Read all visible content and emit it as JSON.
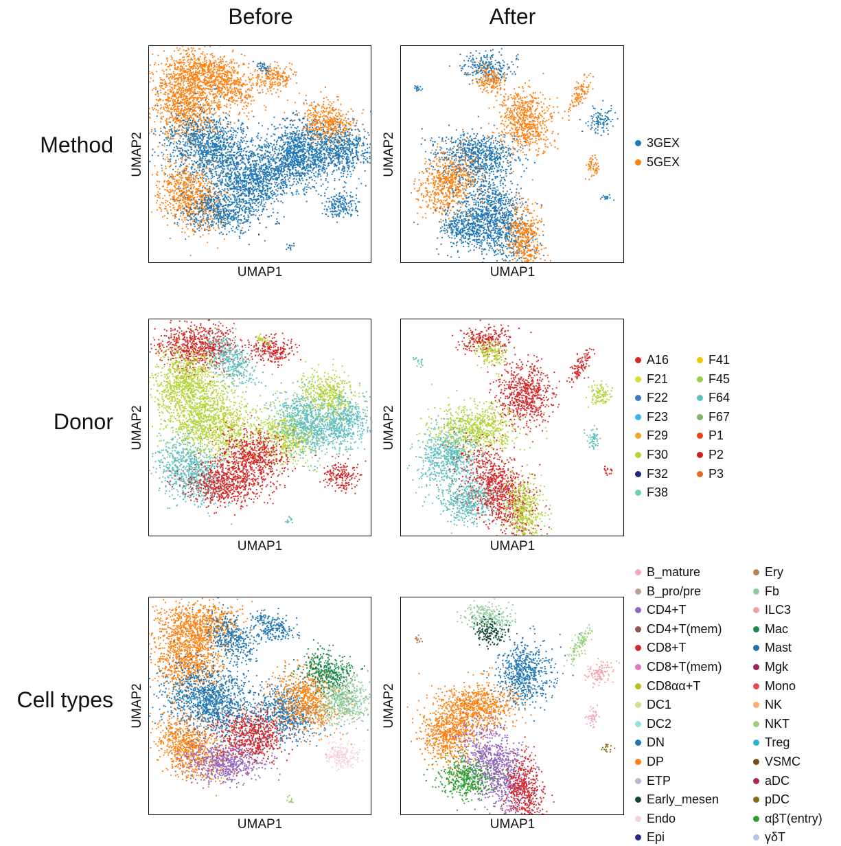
{
  "columns": {
    "before": "Before",
    "after": "After"
  },
  "axis": {
    "x": "UMAP1",
    "y": "UMAP2"
  },
  "chart_data": [
    {
      "type": "scatter",
      "row_label": "Method",
      "panels": [
        "Before",
        "After"
      ],
      "xlabel": "UMAP1",
      "ylabel": "UMAP2",
      "legend": [
        {
          "name": "3GEX",
          "color": "#1f77b4"
        },
        {
          "name": "5GEX",
          "color": "#ff7f0e"
        }
      ]
    },
    {
      "type": "scatter",
      "row_label": "Donor",
      "panels": [
        "Before",
        "After"
      ],
      "xlabel": "UMAP1",
      "ylabel": "UMAP2",
      "legend": [
        {
          "name": "A16",
          "color": "#d62728"
        },
        {
          "name": "F21",
          "color": "#dbdb3a"
        },
        {
          "name": "F22",
          "color": "#3a78c9"
        },
        {
          "name": "F23",
          "color": "#3ab6e8"
        },
        {
          "name": "F29",
          "color": "#f5a623"
        },
        {
          "name": "F30",
          "color": "#b5d43a"
        },
        {
          "name": "F32",
          "color": "#1c2a7a"
        },
        {
          "name": "F38",
          "color": "#6fd0b0"
        },
        {
          "name": "F41",
          "color": "#f2c600"
        },
        {
          "name": "F45",
          "color": "#9acd4a"
        },
        {
          "name": "F64",
          "color": "#5fbfbf"
        },
        {
          "name": "F67",
          "color": "#7fb36a"
        },
        {
          "name": "P1",
          "color": "#e8421c"
        },
        {
          "name": "P2",
          "color": "#c81e1e"
        },
        {
          "name": "P3",
          "color": "#e86a1c"
        }
      ]
    },
    {
      "type": "scatter",
      "row_label": "Cell types",
      "panels": [
        "Before",
        "After"
      ],
      "xlabel": "UMAP1",
      "ylabel": "UMAP2",
      "legend": [
        {
          "name": "B_mature",
          "color": "#f4a6c8"
        },
        {
          "name": "B_pro/pre",
          "color": "#c49c94"
        },
        {
          "name": "CD4+T",
          "color": "#9467bd"
        },
        {
          "name": "CD4+T(mem)",
          "color": "#8c564b"
        },
        {
          "name": "CD8+T",
          "color": "#d62728"
        },
        {
          "name": "CD8+T(mem)",
          "color": "#e377c2"
        },
        {
          "name": "CD8αα+T",
          "color": "#bcbd22"
        },
        {
          "name": "DC1",
          "color": "#dbdb8d"
        },
        {
          "name": "DC2",
          "color": "#9edae5"
        },
        {
          "name": "DN",
          "color": "#1f77b4"
        },
        {
          "name": "DP",
          "color": "#ff7f0e"
        },
        {
          "name": "ETP",
          "color": "#c5b0d5"
        },
        {
          "name": "Early_mesen",
          "color": "#17453a"
        },
        {
          "name": "Endo",
          "color": "#f7d0de"
        },
        {
          "name": "Epi",
          "color": "#2a2a8c"
        },
        {
          "name": "Ery",
          "color": "#b5855a"
        },
        {
          "name": "Fb",
          "color": "#8fcb9b"
        },
        {
          "name": "ILC3",
          "color": "#f2a0a8"
        },
        {
          "name": "Mac",
          "color": "#1a8a4a"
        },
        {
          "name": "Mast",
          "color": "#1f6fb4"
        },
        {
          "name": "Mgk",
          "color": "#a0205a"
        },
        {
          "name": "Mono",
          "color": "#e84a4a"
        },
        {
          "name": "NK",
          "color": "#f5b07a"
        },
        {
          "name": "NKT",
          "color": "#98d07a"
        },
        {
          "name": "Treg",
          "color": "#29b5d5"
        },
        {
          "name": "VSMC",
          "color": "#7a4a1a"
        },
        {
          "name": "aDC",
          "color": "#b02a4a"
        },
        {
          "name": "pDC",
          "color": "#8a6a1a"
        },
        {
          "name": "αβT(entry)",
          "color": "#2ca02c"
        },
        {
          "name": "γδT",
          "color": "#aec7e8"
        }
      ]
    }
  ]
}
